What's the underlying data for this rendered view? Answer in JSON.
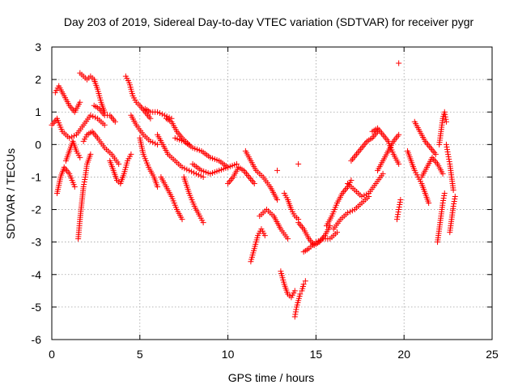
{
  "chart_data": {
    "type": "scatter",
    "title": "Day 203 of 2019, Sidereal Day-to-day VTEC variation (SDTVAR) for receiver pygr",
    "xlabel": "GPS time / hours",
    "ylabel": "SDTVAR / TECUs",
    "xlim": [
      0,
      25
    ],
    "ylim": [
      -6,
      3
    ],
    "xticks": [
      0,
      5,
      10,
      15,
      20,
      25
    ],
    "yticks": [
      -6,
      -5,
      -4,
      -3,
      -2,
      -1,
      0,
      1,
      2,
      3
    ],
    "grid": true,
    "marker": "+",
    "color": "#ff0000",
    "traces": [
      {
        "x": [
          0.0,
          0.3,
          0.6,
          1.0,
          1.4,
          1.8,
          2.2,
          2.6,
          3.0
        ],
        "y": [
          0.6,
          0.8,
          0.4,
          0.2,
          0.3,
          0.6,
          0.9,
          0.8,
          0.6
        ]
      },
      {
        "x": [
          0.2,
          0.4,
          0.7,
          1.0,
          1.3,
          1.6
        ],
        "y": [
          1.6,
          1.8,
          1.5,
          1.2,
          1.0,
          1.3
        ]
      },
      {
        "x": [
          0.3,
          0.5,
          0.7,
          1.0,
          1.3
        ],
        "y": [
          -1.5,
          -1.0,
          -0.7,
          -0.9,
          -1.3
        ]
      },
      {
        "x": [
          0.8,
          1.0,
          1.2,
          1.4,
          1.6
        ],
        "y": [
          -0.5,
          -0.2,
          0.1,
          -0.2,
          -0.4
        ]
      },
      {
        "x": [
          1.5,
          1.6,
          1.7,
          1.8,
          1.9,
          2.0,
          2.2
        ],
        "y": [
          -2.9,
          -2.3,
          -1.8,
          -1.3,
          -1.0,
          -0.6,
          -0.3
        ]
      },
      {
        "x": [
          1.6,
          1.8,
          2.0,
          2.2,
          2.4,
          2.6,
          2.8,
          3.0
        ],
        "y": [
          2.2,
          2.1,
          2.0,
          2.1,
          2.0,
          1.7,
          1.3,
          1.0
        ]
      },
      {
        "x": [
          1.8,
          2.0,
          2.3,
          2.6,
          3.0,
          3.4,
          3.8
        ],
        "y": [
          0.1,
          0.3,
          0.4,
          0.2,
          -0.1,
          -0.3,
          -0.6
        ]
      },
      {
        "x": [
          2.4,
          2.7,
          3.0,
          3.3,
          3.6
        ],
        "y": [
          1.2,
          1.1,
          0.9,
          0.9,
          0.7
        ]
      },
      {
        "x": [
          3.3,
          3.5,
          3.7,
          3.9,
          4.1,
          4.3,
          4.5
        ],
        "y": [
          -0.5,
          -0.8,
          -1.1,
          -1.2,
          -0.9,
          -0.5,
          -0.3
        ]
      },
      {
        "x": [
          4.2,
          4.4,
          4.6,
          4.8,
          5.0,
          5.3,
          5.6
        ],
        "y": [
          2.1,
          1.9,
          1.5,
          1.3,
          1.2,
          1.0,
          0.8
        ]
      },
      {
        "x": [
          4.5,
          4.8,
          5.2,
          5.6,
          6.0
        ],
        "y": [
          0.9,
          0.6,
          0.3,
          0.1,
          0.0
        ]
      },
      {
        "x": [
          5.0,
          5.2,
          5.5,
          5.8,
          6.0
        ],
        "y": [
          0.2,
          -0.3,
          -0.7,
          -1.0,
          -1.3
        ]
      },
      {
        "x": [
          5.3,
          5.6,
          6.0,
          6.4,
          6.8
        ],
        "y": [
          1.1,
          1.0,
          1.0,
          0.9,
          0.8
        ]
      },
      {
        "x": [
          6.0,
          6.3,
          6.6,
          7.0,
          7.4,
          7.8,
          8.2,
          8.6
        ],
        "y": [
          0.3,
          0.0,
          -0.3,
          -0.5,
          -0.7,
          -0.8,
          -0.9,
          -1.0
        ]
      },
      {
        "x": [
          6.2,
          6.5,
          6.8,
          7.1,
          7.4
        ],
        "y": [
          -1.0,
          -1.3,
          -1.6,
          -2.0,
          -2.3
        ]
      },
      {
        "x": [
          6.5,
          6.8,
          7.1,
          7.4,
          7.8
        ],
        "y": [
          0.8,
          0.7,
          0.4,
          0.2,
          0.0
        ]
      },
      {
        "x": [
          7.5,
          7.8,
          8.1,
          8.4,
          8.6
        ],
        "y": [
          -1.0,
          -1.5,
          -1.9,
          -2.2,
          -2.4
        ]
      },
      {
        "x": [
          7.0,
          7.5,
          8.0,
          8.5,
          9.0,
          9.5,
          10.0
        ],
        "y": [
          0.2,
          0.1,
          -0.1,
          -0.2,
          -0.4,
          -0.5,
          -0.7
        ]
      },
      {
        "x": [
          8.0,
          8.5,
          9.0,
          9.5,
          10.0,
          10.5
        ],
        "y": [
          -0.6,
          -0.8,
          -0.9,
          -0.8,
          -0.7,
          -0.6
        ]
      },
      {
        "x": [
          10.0,
          10.3,
          10.6,
          10.9,
          11.2,
          11.5
        ],
        "y": [
          -1.2,
          -1.0,
          -0.7,
          -0.8,
          -1.0,
          -1.2
        ]
      },
      {
        "x": [
          11.0,
          11.3,
          11.6,
          12.0,
          12.4,
          12.8
        ],
        "y": [
          -0.2,
          -0.5,
          -0.8,
          -1.0,
          -1.3,
          -1.7
        ]
      },
      {
        "x": [
          11.3,
          11.5,
          11.7,
          11.9,
          12.1
        ],
        "y": [
          -3.6,
          -3.2,
          -2.8,
          -2.6,
          -2.8
        ]
      },
      {
        "x": [
          11.8,
          12.2,
          12.6,
          13.0,
          13.4
        ],
        "y": [
          -2.2,
          -2.0,
          -2.2,
          -2.6,
          -2.9
        ]
      },
      {
        "x": [
          13.0,
          13.2,
          13.4,
          13.6,
          13.8
        ],
        "y": [
          -3.9,
          -4.3,
          -4.6,
          -4.7,
          -4.5
        ]
      },
      {
        "x": [
          13.8,
          13.9,
          14.0,
          14.1,
          14.2,
          14.3,
          14.4
        ],
        "y": [
          -5.3,
          -5.0,
          -4.8,
          -4.6,
          -4.5,
          -4.3,
          -4.2
        ]
      },
      {
        "x": [
          13.2,
          13.4,
          13.6,
          13.8,
          14.0
        ],
        "y": [
          -1.5,
          -1.7,
          -2.0,
          -2.2,
          -2.3
        ]
      },
      {
        "x": [
          14.0,
          14.3,
          14.6,
          14.9,
          15.2,
          15.5,
          15.8
        ],
        "y": [
          -2.4,
          -2.6,
          -2.9,
          -3.1,
          -3.0,
          -2.8,
          -2.5
        ]
      },
      {
        "x": [
          14.3,
          14.6,
          15.0,
          15.4,
          15.8,
          16.2
        ],
        "y": [
          -3.3,
          -3.2,
          -3.0,
          -2.9,
          -2.9,
          -2.7
        ]
      },
      {
        "x": [
          15.6,
          15.9,
          16.2,
          16.5,
          16.8,
          17.0
        ],
        "y": [
          -2.5,
          -2.2,
          -1.8,
          -1.5,
          -1.3,
          -1.1
        ]
      },
      {
        "x": [
          16.0,
          16.4,
          16.8,
          17.2,
          17.6,
          18.0
        ],
        "y": [
          -2.6,
          -2.3,
          -2.1,
          -2.0,
          -1.8,
          -1.6
        ]
      },
      {
        "x": [
          16.8,
          17.2,
          17.6,
          18.0,
          18.4,
          18.8
        ],
        "y": [
          -1.2,
          -1.4,
          -1.6,
          -1.5,
          -1.2,
          -0.9
        ]
      },
      {
        "x": [
          17.0,
          17.3,
          17.6,
          17.9,
          18.2,
          18.5
        ],
        "y": [
          -0.5,
          -0.3,
          -0.1,
          0.1,
          0.2,
          0.4
        ]
      },
      {
        "x": [
          18.2,
          18.5,
          18.8,
          19.1,
          19.4,
          19.7
        ],
        "y": [
          0.4,
          0.5,
          0.3,
          0.1,
          -0.3,
          -0.6
        ]
      },
      {
        "x": [
          18.5,
          18.8,
          19.1,
          19.4,
          19.7
        ],
        "y": [
          -0.8,
          -0.5,
          -0.2,
          0.1,
          0.3
        ]
      },
      {
        "x": [
          19.6,
          19.7,
          19.8
        ],
        "y": [
          -2.3,
          -2.0,
          -1.7
        ]
      },
      {
        "x": [
          20.2,
          20.4,
          20.6,
          20.8,
          21.0,
          21.2,
          21.4
        ],
        "y": [
          -0.2,
          -0.5,
          -0.8,
          -1.0,
          -1.2,
          -1.5,
          -1.8
        ]
      },
      {
        "x": [
          20.6,
          20.9,
          21.2,
          21.5,
          21.8
        ],
        "y": [
          0.7,
          0.4,
          0.1,
          -0.1,
          -0.3
        ]
      },
      {
        "x": [
          21.0,
          21.3,
          21.6,
          21.9,
          22.2
        ],
        "y": [
          -1.0,
          -0.7,
          -0.4,
          -0.6,
          -0.9
        ]
      },
      {
        "x": [
          21.9,
          22.0,
          22.1,
          22.2,
          22.3
        ],
        "y": [
          -3.0,
          -2.6,
          -2.2,
          -1.8,
          -1.5
        ]
      },
      {
        "x": [
          22.0,
          22.1,
          22.2,
          22.3,
          22.4
        ],
        "y": [
          0.0,
          0.4,
          0.8,
          1.0,
          0.7
        ]
      },
      {
        "x": [
          22.4,
          22.5,
          22.6,
          22.7,
          22.8
        ],
        "y": [
          0.0,
          -0.3,
          -0.6,
          -1.0,
          -1.4
        ]
      },
      {
        "x": [
          22.6,
          22.7,
          22.8,
          22.9
        ],
        "y": [
          -2.7,
          -2.3,
          -1.9,
          -1.6
        ]
      }
    ],
    "outliers": [
      {
        "x": 19.7,
        "y": 2.5
      },
      {
        "x": 12.8,
        "y": -0.8
      },
      {
        "x": 14.0,
        "y": -0.6
      }
    ]
  }
}
